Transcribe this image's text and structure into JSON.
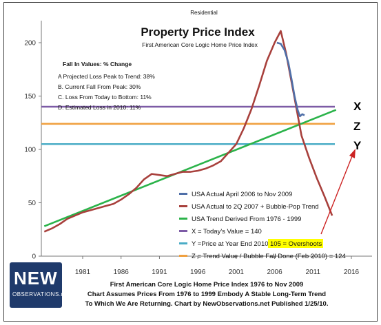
{
  "chart_data": {
    "type": "line",
    "supertitle": "Residential",
    "title": "Property Price Index",
    "subtitle": "First American Core Logic Home Price Index",
    "xlabel": "",
    "ylabel": "",
    "xlim": [
      1976,
      2017
    ],
    "ylim": [
      0,
      220
    ],
    "x_ticks": [
      "1981",
      "1986",
      "1991",
      "1996",
      "2001",
      "2006",
      "2011",
      "2016"
    ],
    "y_ticks": [
      "0",
      "50",
      "100",
      "150",
      "200"
    ],
    "annotations": {
      "heading": "Fall In Values: % Change",
      "lines": [
        "A Projected Loss Peak to Trend: 38%",
        "B. Current Fall From Peak: 30%",
        "C. Loss From Today to Bottom: 11%",
        "D. Estimated Loss in 2010: 11%"
      ]
    },
    "side_letters": [
      "X",
      "Z",
      "Y"
    ],
    "series": [
      {
        "name": "USA Actual April 2006 to Nov 2009",
        "color": "#4f6fa8",
        "points": [
          [
            2006.3,
            200
          ],
          [
            2006.8,
            199
          ],
          [
            2007.3,
            193
          ],
          [
            2007.8,
            181
          ],
          [
            2008.2,
            166
          ],
          [
            2008.6,
            150
          ],
          [
            2009.0,
            137
          ],
          [
            2009.3,
            131
          ],
          [
            2009.6,
            133
          ],
          [
            2009.9,
            132
          ]
        ]
      },
      {
        "name": "USA Actual to 2Q 2007 + Bubble-Pop Trend",
        "color": "#a8403c",
        "points": [
          [
            1976,
            23
          ],
          [
            1977,
            26
          ],
          [
            1978,
            30
          ],
          [
            1979,
            35
          ],
          [
            1980,
            38
          ],
          [
            1981,
            41
          ],
          [
            1982,
            43
          ],
          [
            1983,
            45
          ],
          [
            1984,
            47
          ],
          [
            1985,
            49
          ],
          [
            1986,
            53
          ],
          [
            1987,
            58
          ],
          [
            1988,
            64
          ],
          [
            1989,
            72
          ],
          [
            1990,
            77
          ],
          [
            1991,
            76
          ],
          [
            1992,
            75
          ],
          [
            1993,
            77
          ],
          [
            1994,
            79
          ],
          [
            1995,
            79
          ],
          [
            1996,
            80
          ],
          [
            1997,
            82
          ],
          [
            1998,
            85
          ],
          [
            1999,
            89
          ],
          [
            2000,
            97
          ],
          [
            2001,
            105
          ],
          [
            2002,
            120
          ],
          [
            2003,
            138
          ],
          [
            2004,
            160
          ],
          [
            2005,
            183
          ],
          [
            2006,
            200
          ],
          [
            2006.8,
            211
          ],
          [
            2007.5,
            190
          ],
          [
            2008.5,
            152
          ],
          [
            2009.5,
            113
          ],
          [
            2010.5,
            92
          ],
          [
            2011.5,
            73
          ],
          [
            2012.5,
            56
          ],
          [
            2013.5,
            38
          ]
        ]
      },
      {
        "name": "USA Trend Derived From 1976 - 1999",
        "color": "#2bb34a",
        "points": [
          [
            1976,
            28
          ],
          [
            2014,
            137
          ]
        ]
      },
      {
        "name": "X = Today's Value = 140",
        "color": "#7d5ba6",
        "value": 140
      },
      {
        "name": "Y =Price at Year End 2010 = 105 = Overshoots",
        "color": "#4aacc6",
        "value": 105
      },
      {
        "name": "Z = Trend Value / Bubble Fall Done (Feb 2010) = 124",
        "color": "#f0a040",
        "value": 124
      }
    ],
    "legend": {
      "placement": "bottom-right",
      "entries": [
        "USA Actual April 2006 to Nov 2009",
        "USA Actual to 2Q 2007 + Bubble-Pop Trend",
        "USA Trend Derived From 1976 - 1999",
        "X = Today's Value = 140",
        "Y =Price at Year End 2010 = ",
        "Z = Trend Value / Bubble Fall Done (Feb 2010) = 124"
      ],
      "highlight": "105 = Overshoots"
    },
    "caption": [
      "First American Core Logic Home Price Index 1976 to Nov 2009",
      "Chart Assumes Prices From 1976 to 1999 Embody A Stable Long-Term Trend",
      "To Which We Are Returning. Chart by NewObservations.net Published 1/25/10."
    ],
    "grid": false
  },
  "logo": {
    "word": "NEW",
    "sub": "OBSERVATIONS.net"
  }
}
